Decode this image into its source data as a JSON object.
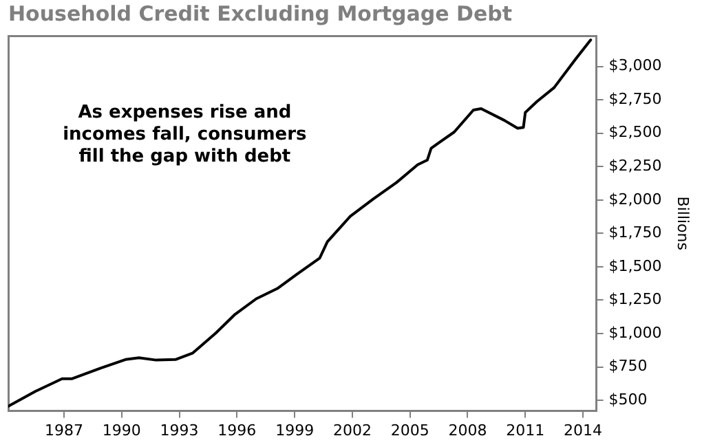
{
  "chart_data": {
    "type": "line",
    "title": "Household Credit Excluding Mortgage Debt",
    "ylabel": "Billions",
    "annotations": [
      "As expenses rise and incomes fall, consumers fill the gap with debt"
    ],
    "series": [
      {
        "color": "#000000",
        "x": [
          1984.1,
          1985.5,
          1986.9,
          1987.4,
          1988.9,
          1990.2,
          1990.9,
          1991.8,
          1992.8,
          1993.7,
          1994.9,
          1995.9,
          1997.0,
          1998.1,
          1999.1,
          2000.3,
          2000.7,
          2001.4,
          2001.9,
          2003.1,
          2004.3,
          2005.4,
          2005.9,
          2006.1,
          2006.5,
          2007.3,
          2008.3,
          2008.7,
          2009.9,
          2010.6,
          2010.9,
          2011.0,
          2011.6,
          2012.5,
          2013.6,
          2014.4
        ],
        "values": [
          455,
          566,
          661,
          661,
          741,
          805,
          818,
          801,
          805,
          854,
          1004,
          1144,
          1260,
          1337,
          1442,
          1564,
          1687,
          1799,
          1879,
          2009,
          2131,
          2264,
          2299,
          2387,
          2429,
          2509,
          2674,
          2684,
          2597,
          2537,
          2544,
          2656,
          2737,
          2842,
          3052,
          3199
        ]
      }
    ],
    "xlim": [
      1984.1,
      2014.7
    ],
    "xticks": [
      1987,
      1990,
      1993,
      1996,
      1999,
      2002,
      2005,
      2008,
      2011,
      2014
    ],
    "ylim": [
      420,
      3230
    ],
    "yticks": [
      {
        "value": 500,
        "label": "$500"
      },
      {
        "value": 750,
        "label": "$750"
      },
      {
        "value": 1000,
        "label": "$1,000"
      },
      {
        "value": 1250,
        "label": "$1,250"
      },
      {
        "value": 1500,
        "label": "$1,500"
      },
      {
        "value": 1750,
        "label": "$1,750"
      },
      {
        "value": 2000,
        "label": "$2,000"
      },
      {
        "value": 2250,
        "label": "$2,250"
      },
      {
        "value": 2500,
        "label": "$2,500"
      },
      {
        "value": 2750,
        "label": "$2,750"
      },
      {
        "value": 3000,
        "label": "$3,000"
      }
    ],
    "grid": false,
    "legend": false,
    "marker": "none",
    "line_style": "solid"
  }
}
